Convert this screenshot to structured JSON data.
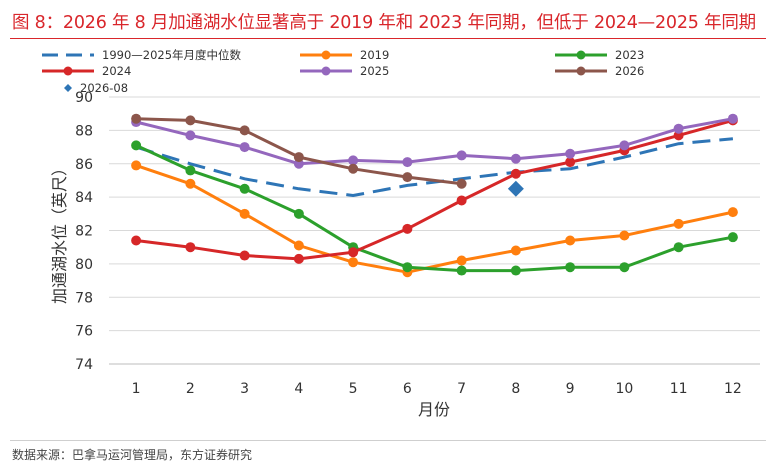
{
  "header": {
    "title": "图 8：2026 年 8 月加通湖水位显著高于 2019 年和 2023 年同期，但低于 2024—2025 年同期"
  },
  "footer": {
    "source": "数据来源：巴拿马运河管理局，东方证券研究"
  },
  "chart_data": {
    "type": "line",
    "xlabel": "月份",
    "ylabel": "加通湖水位（英尺）",
    "ylim": [
      74,
      90
    ],
    "yticks": [
      74,
      76,
      78,
      80,
      82,
      84,
      86,
      88,
      90
    ],
    "categories": [
      "1",
      "2",
      "3",
      "4",
      "5",
      "6",
      "7",
      "8",
      "9",
      "10",
      "11",
      "12"
    ],
    "grid": "horizontal",
    "legend_position": "top",
    "series": [
      {
        "name": "1990—2025年月度中位数",
        "color": "#2e75b6",
        "style": "dashed",
        "values": [
          87.0,
          86.0,
          85.1,
          84.5,
          84.1,
          84.7,
          85.1,
          85.5,
          85.7,
          86.4,
          87.2,
          87.5
        ]
      },
      {
        "name": "2019",
        "color": "#ff7f0e",
        "style": "marker",
        "values": [
          85.9,
          84.8,
          83.0,
          81.1,
          80.1,
          79.5,
          80.2,
          80.8,
          81.4,
          81.7,
          82.4,
          83.1
        ]
      },
      {
        "name": "2023",
        "color": "#2ca02c",
        "style": "marker",
        "values": [
          87.1,
          85.6,
          84.5,
          83.0,
          81.0,
          79.8,
          79.6,
          79.6,
          79.8,
          79.8,
          81.0,
          81.6
        ]
      },
      {
        "name": "2024",
        "color": "#d62728",
        "style": "marker",
        "values": [
          81.4,
          81.0,
          80.5,
          80.3,
          80.7,
          82.1,
          83.8,
          85.4,
          86.1,
          86.8,
          87.7,
          88.6
        ]
      },
      {
        "name": "2025",
        "color": "#9467bd",
        "style": "marker",
        "values": [
          88.5,
          87.7,
          87.0,
          86.0,
          86.2,
          86.1,
          86.5,
          86.3,
          86.6,
          87.1,
          88.1,
          88.7
        ]
      },
      {
        "name": "2026",
        "color": "#8c564b",
        "style": "marker",
        "values": [
          88.7,
          88.6,
          88.0,
          86.4,
          85.7,
          85.2,
          84.8,
          null,
          null,
          null,
          null,
          null
        ]
      },
      {
        "name": "2026-08",
        "color": "#2e75b6",
        "style": "diamond",
        "values": [
          null,
          null,
          null,
          null,
          null,
          null,
          null,
          84.5,
          null,
          null,
          null,
          null
        ]
      }
    ]
  }
}
